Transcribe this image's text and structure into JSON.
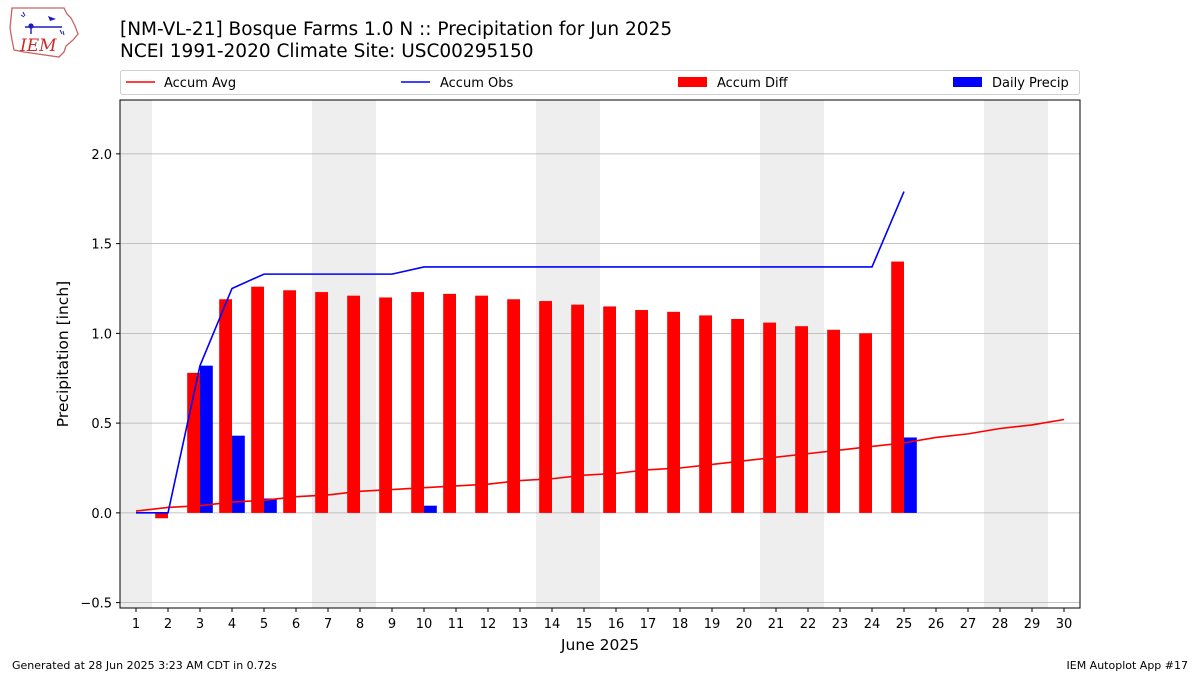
{
  "titles": {
    "line1": "[NM-VL-21] Bosque Farms 1.0 N :: Precipitation for Jun 2025",
    "line2": "NCEI 1991-2020 Climate Site: USC00295150"
  },
  "logo": {
    "text": "IEM"
  },
  "footer": {
    "left": "Generated at 28 Jun 2025 3:23 AM CDT in 0.72s",
    "right": "IEM Autoplot App #17"
  },
  "colors": {
    "accum_avg": "#ff0000",
    "accum_obs": "#0000ff",
    "accum_diff": "#ff0000",
    "daily_precip": "#0000ff",
    "weekend_shade": "#eeeeee",
    "grid": "#b0b0b0"
  },
  "chart_data": {
    "type": "bar",
    "xlabel": "June 2025",
    "ylabel": "Precipitation [inch]",
    "xlim": [
      0.5,
      30.5
    ],
    "ylim": [
      -0.53,
      2.3
    ],
    "yticks": [
      -0.5,
      0.0,
      0.5,
      1.0,
      1.5,
      2.0
    ],
    "ytick_labels": [
      "−0.5",
      "0.0",
      "0.5",
      "1.0",
      "1.5",
      "2.0"
    ],
    "days": [
      1,
      2,
      3,
      4,
      5,
      6,
      7,
      8,
      9,
      10,
      11,
      12,
      13,
      14,
      15,
      16,
      17,
      18,
      19,
      20,
      21,
      22,
      23,
      24,
      25,
      26,
      27,
      28,
      29,
      30
    ],
    "day_labels": [
      "1",
      "2",
      "3",
      "4",
      "5",
      "6",
      "7",
      "8",
      "9",
      "10",
      "11",
      "12",
      "13",
      "14",
      "15",
      "16",
      "17",
      "18",
      "19",
      "20",
      "21",
      "22",
      "23",
      "24",
      "25",
      "26",
      "27",
      "28",
      "29",
      "30"
    ],
    "weekend_days": [
      1,
      7,
      8,
      14,
      15,
      21,
      22,
      28,
      29
    ],
    "grid": true,
    "legend_placement": "top",
    "legend": [
      "Accum Avg",
      "Accum Obs",
      "Accum Diff",
      "Daily Precip"
    ],
    "series": [
      {
        "name": "Accum Avg",
        "type": "line",
        "values": [
          0.01,
          0.03,
          0.04,
          0.06,
          0.07,
          0.09,
          0.1,
          0.12,
          0.13,
          0.14,
          0.15,
          0.16,
          0.18,
          0.19,
          0.21,
          0.22,
          0.24,
          0.25,
          0.27,
          0.29,
          0.31,
          0.33,
          0.35,
          0.37,
          0.39,
          0.42,
          0.44,
          0.47,
          0.49,
          0.52
        ]
      },
      {
        "name": "Accum Obs",
        "type": "line",
        "values": [
          0.0,
          0.0,
          0.82,
          1.25,
          1.33,
          1.33,
          1.33,
          1.33,
          1.33,
          1.37,
          1.37,
          1.37,
          1.37,
          1.37,
          1.37,
          1.37,
          1.37,
          1.37,
          1.37,
          1.37,
          1.37,
          1.37,
          1.37,
          1.37,
          1.79
        ]
      },
      {
        "name": "Accum Diff",
        "type": "bar",
        "values": [
          0.0,
          -0.03,
          0.78,
          1.19,
          1.26,
          1.24,
          1.23,
          1.21,
          1.2,
          1.23,
          1.22,
          1.21,
          1.19,
          1.18,
          1.16,
          1.15,
          1.13,
          1.12,
          1.1,
          1.08,
          1.06,
          1.04,
          1.02,
          1.0,
          1.4
        ]
      },
      {
        "name": "Daily Precip",
        "type": "bar",
        "values": [
          0.0,
          0.0,
          0.82,
          0.43,
          0.08,
          0.0,
          0.0,
          0.0,
          0.0,
          0.04,
          0.0,
          0.0,
          0.0,
          0.0,
          0.0,
          0.0,
          0.0,
          0.0,
          0.0,
          0.0,
          0.0,
          0.0,
          0.0,
          0.0,
          0.42
        ]
      }
    ]
  }
}
